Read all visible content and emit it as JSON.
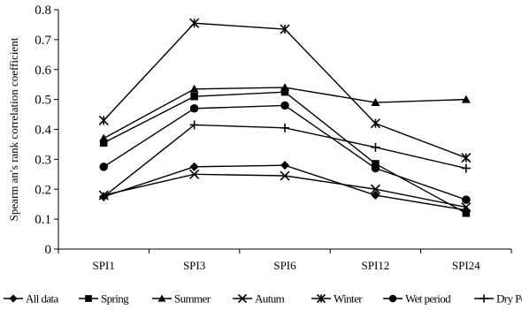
{
  "chart_data": {
    "type": "line",
    "categories": [
      "SPI1",
      "SPI3",
      "SPI6",
      "SPI12",
      "SPI24"
    ],
    "ylabel": "Spearm an′s rank correlation coefficient",
    "xlabel": "",
    "ylim": [
      0,
      0.8
    ],
    "yticks": [
      0,
      0.1,
      0.2,
      0.3,
      0.4,
      0.5,
      0.6,
      0.7,
      0.8
    ],
    "ytick_labels": [
      "0",
      "0.1",
      "0.2",
      "0.3",
      "0.4",
      "0.5",
      "0.6",
      "0.7",
      "0.8"
    ],
    "grid": false,
    "legend_position": "bottom",
    "series": [
      {
        "name": "All data",
        "marker": "diamond",
        "values": [
          0.175,
          0.275,
          0.28,
          0.18,
          0.13
        ]
      },
      {
        "name": "Spring",
        "marker": "square",
        "values": [
          0.355,
          0.51,
          0.525,
          0.285,
          0.12
        ]
      },
      {
        "name": "Summer",
        "marker": "triangle",
        "values": [
          0.37,
          0.535,
          0.54,
          0.49,
          0.5
        ]
      },
      {
        "name": "Autum",
        "marker": "x",
        "values": [
          0.18,
          0.25,
          0.245,
          0.2,
          0.14
        ]
      },
      {
        "name": "Winter",
        "marker": "star",
        "values": [
          0.43,
          0.755,
          0.735,
          0.42,
          0.305
        ]
      },
      {
        "name": "Wet period",
        "marker": "circle",
        "values": [
          0.275,
          0.47,
          0.48,
          0.27,
          0.165
        ]
      },
      {
        "name": "Dry Period",
        "marker": "plus",
        "values": [
          0.175,
          0.415,
          0.405,
          0.34,
          0.27
        ]
      }
    ]
  }
}
